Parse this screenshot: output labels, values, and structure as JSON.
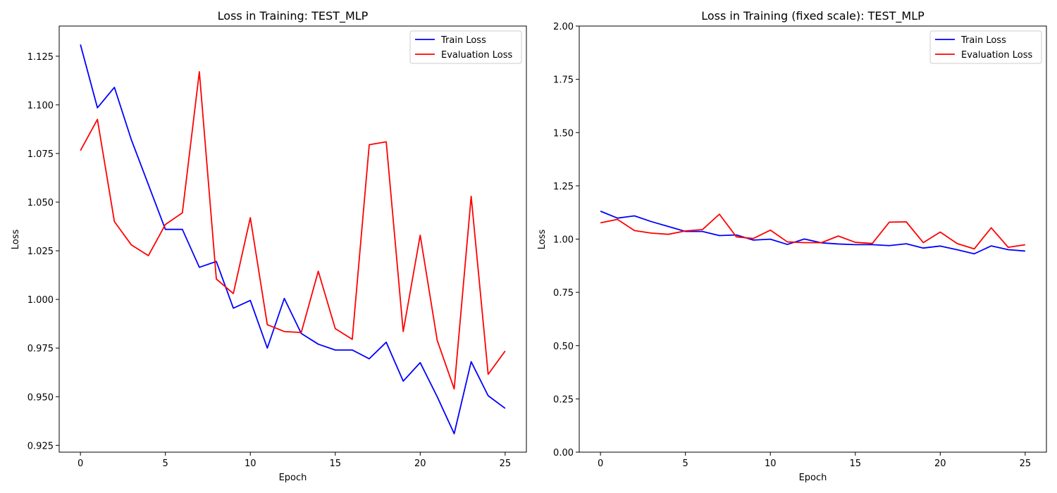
{
  "chart_data": [
    {
      "type": "line",
      "title": "Loss in Training: TEST_MLP",
      "xlabel": "Epoch",
      "ylabel": "Loss",
      "xlim": [
        -1.25,
        26.25
      ],
      "ylim": [
        0.9215,
        1.1405
      ],
      "xticks": [
        0,
        5,
        10,
        15,
        20,
        25
      ],
      "yticks": [
        0.925,
        0.95,
        0.975,
        1.0,
        1.025,
        1.05,
        1.075,
        1.1,
        1.125
      ],
      "ytick_labels": [
        "0.925",
        "0.950",
        "0.975",
        "1.000",
        "1.025",
        "1.050",
        "1.075",
        "1.100",
        "1.125"
      ],
      "grid": false,
      "legend_position": "upper right",
      "x": [
        0,
        1,
        2,
        3,
        4,
        5,
        6,
        7,
        8,
        9,
        10,
        11,
        12,
        13,
        14,
        15,
        16,
        17,
        18,
        19,
        20,
        21,
        22,
        23,
        24,
        25
      ],
      "series": [
        {
          "name": "Train Loss",
          "color": "#0000ff",
          "values": [
            1.131,
            1.0985,
            1.109,
            1.082,
            1.059,
            1.036,
            1.036,
            1.0165,
            1.0195,
            0.9955,
            0.9995,
            0.975,
            1.0005,
            0.9825,
            0.977,
            0.974,
            0.974,
            0.9695,
            0.978,
            0.958,
            0.9675,
            0.95,
            0.931,
            0.968,
            0.9505,
            0.944
          ]
        },
        {
          "name": "Evaluation Loss",
          "color": "#ff0000",
          "values": [
            1.0765,
            1.0925,
            1.04,
            1.028,
            1.0225,
            1.0385,
            1.0445,
            1.117,
            1.0105,
            1.003,
            1.042,
            0.987,
            0.9835,
            0.983,
            1.0145,
            0.985,
            0.9795,
            1.0795,
            1.081,
            0.9835,
            1.033,
            0.979,
            0.954,
            1.053,
            0.9615,
            0.9735
          ]
        }
      ]
    },
    {
      "type": "line",
      "title": "Loss in Training (fixed scale): TEST_MLP",
      "xlabel": "Epoch",
      "ylabel": "Loss",
      "xlim": [
        -1.25,
        26.25
      ],
      "ylim": [
        0,
        2
      ],
      "xticks": [
        0,
        5,
        10,
        15,
        20,
        25
      ],
      "yticks": [
        0,
        0.25,
        0.5,
        0.75,
        1.0,
        1.25,
        1.5,
        1.75,
        2.0
      ],
      "ytick_labels": [
        "0.00",
        "0.25",
        "0.50",
        "0.75",
        "1.00",
        "1.25",
        "1.50",
        "1.75",
        "2.00"
      ],
      "grid": false,
      "legend_position": "upper right",
      "x": [
        0,
        1,
        2,
        3,
        4,
        5,
        6,
        7,
        8,
        9,
        10,
        11,
        12,
        13,
        14,
        15,
        16,
        17,
        18,
        19,
        20,
        21,
        22,
        23,
        24,
        25
      ],
      "series": [
        {
          "name": "Train Loss",
          "color": "#0000ff",
          "values": [
            1.131,
            1.0985,
            1.109,
            1.082,
            1.059,
            1.036,
            1.036,
            1.0165,
            1.0195,
            0.9955,
            0.9995,
            0.975,
            1.0005,
            0.9825,
            0.977,
            0.974,
            0.974,
            0.9695,
            0.978,
            0.958,
            0.9675,
            0.95,
            0.931,
            0.968,
            0.9505,
            0.944
          ]
        },
        {
          "name": "Evaluation Loss",
          "color": "#ff0000",
          "values": [
            1.0765,
            1.0925,
            1.04,
            1.028,
            1.0225,
            1.0385,
            1.0445,
            1.117,
            1.0105,
            1.003,
            1.042,
            0.987,
            0.9835,
            0.983,
            1.0145,
            0.985,
            0.9795,
            1.0795,
            1.081,
            0.9835,
            1.033,
            0.979,
            0.954,
            1.053,
            0.9615,
            0.9735
          ]
        }
      ]
    }
  ]
}
